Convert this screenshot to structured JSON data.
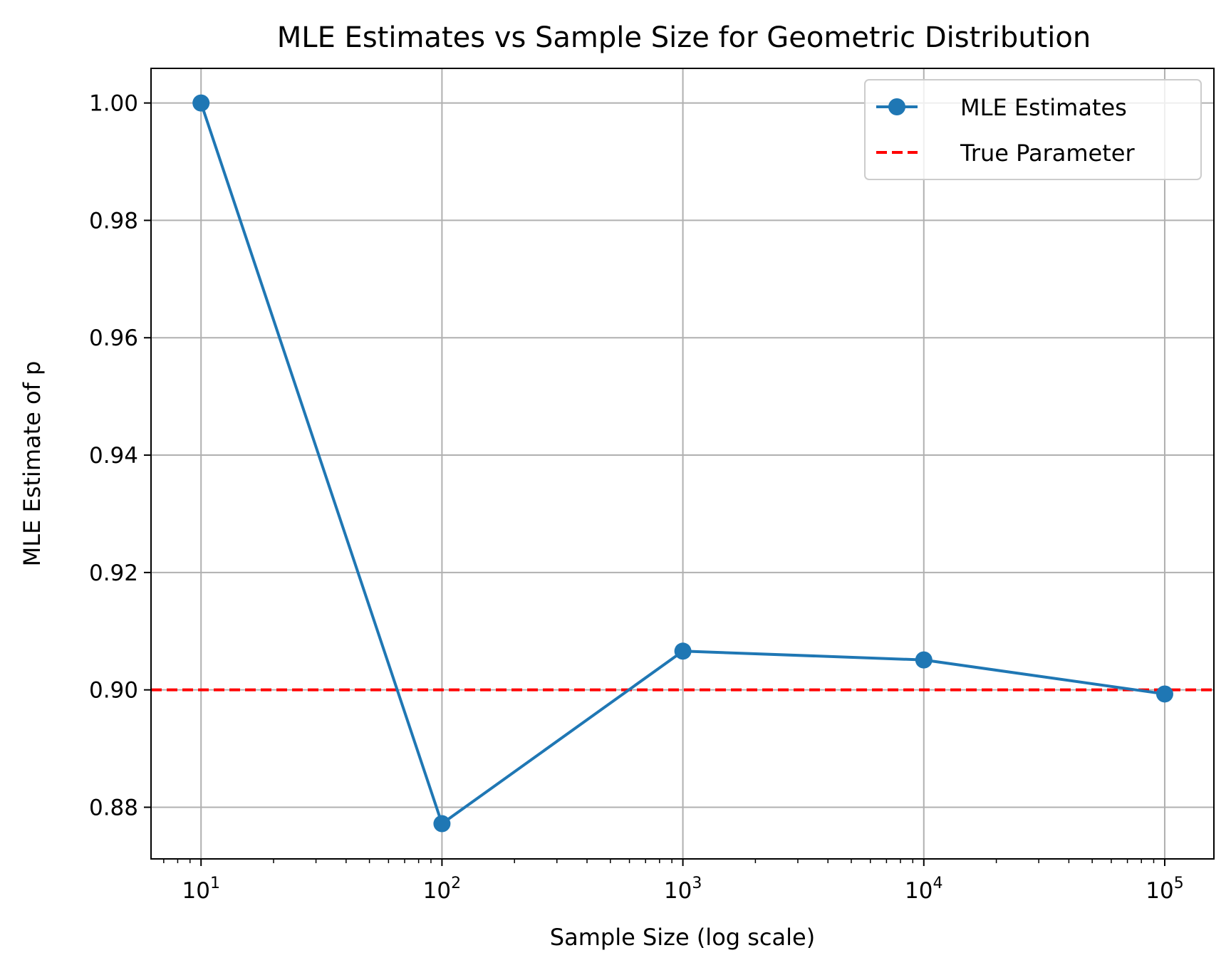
{
  "chart_data": {
    "type": "line",
    "title": "MLE Estimates vs Sample Size for Geometric Distribution",
    "xlabel": "Sample Size (log scale)",
    "ylabel": "MLE Estimate of p",
    "xscale": "log",
    "xlim": [
      6.2,
      160000
    ],
    "ylim": [
      0.8712,
      1.0059
    ],
    "x_ticks": [
      10,
      100,
      1000,
      10000,
      100000
    ],
    "x_tick_labels": [
      {
        "base": "10",
        "exp": "1"
      },
      {
        "base": "10",
        "exp": "2"
      },
      {
        "base": "10",
        "exp": "3"
      },
      {
        "base": "10",
        "exp": "4"
      },
      {
        "base": "10",
        "exp": "5"
      }
    ],
    "y_ticks": [
      0.88,
      0.9,
      0.92,
      0.94,
      0.96,
      0.98,
      1.0
    ],
    "y_tick_labels": [
      "0.88",
      "0.90",
      "0.92",
      "0.94",
      "0.96",
      "0.98",
      "1.00"
    ],
    "grid": true,
    "legend_position": "top-right",
    "series": [
      {
        "name": "MLE Estimates",
        "color": "#1f77b4",
        "style": "solid",
        "marker": "circle",
        "x": [
          10,
          100,
          1000,
          10000,
          100000
        ],
        "y": [
          1.0,
          0.8772,
          0.9066,
          0.9051,
          0.8993
        ]
      }
    ],
    "reference_lines": [
      {
        "name": "True Parameter",
        "y": 0.9,
        "color": "#ff0000",
        "style": "dashed"
      }
    ]
  }
}
